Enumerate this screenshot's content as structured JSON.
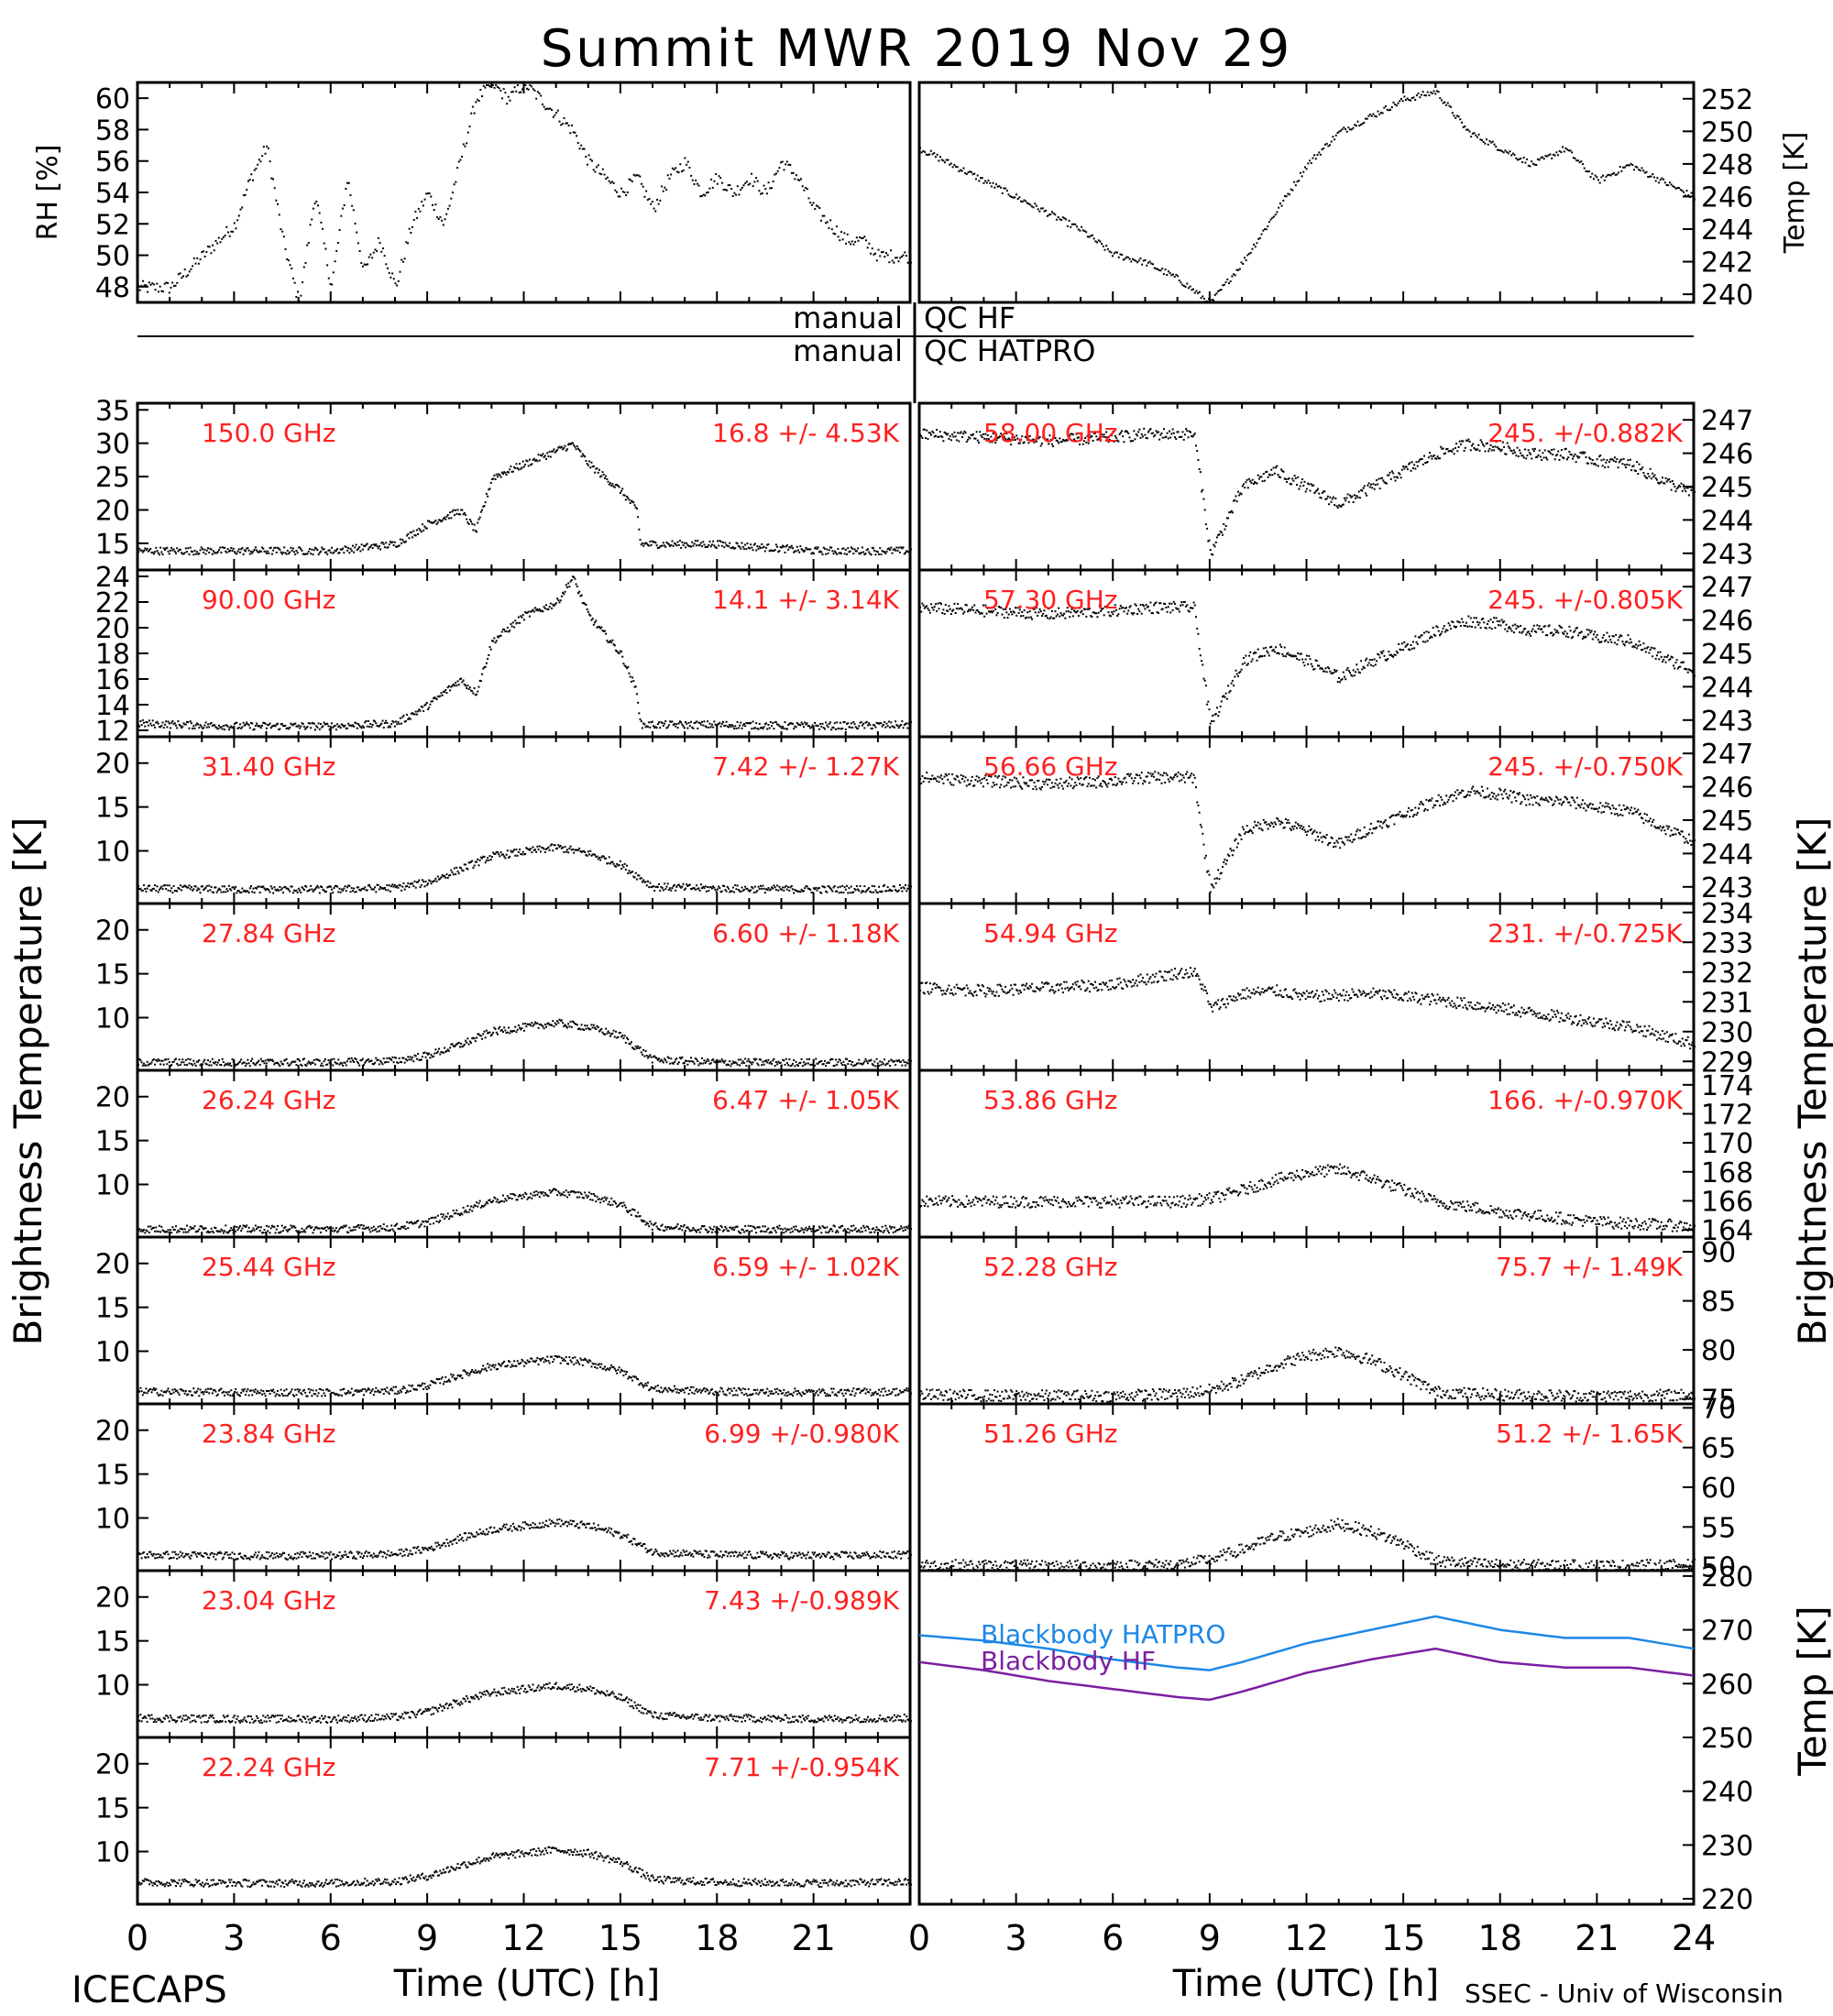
{
  "title": "Summit MWR 2019 Nov 29",
  "footer_left": "ICECAPS",
  "footer_right": "SSEC - Univ of Wisconsin",
  "xlabel": "Time (UTC) [h]",
  "left_ylabel": "Brightness Temperature [K]",
  "right_ylabel_bt": "Brightness Temperature [K]",
  "right_ylabel_temp": "Temp [K]",
  "qc_rows": [
    {
      "left": "manual",
      "right": "QC HF"
    },
    {
      "left": "manual",
      "right": "QC HATPRO"
    }
  ],
  "colors": {
    "axis": "#000000",
    "label_red": "#ff2020",
    "bb_hatpro": "#1e88e5",
    "bb_hf": "#7b1fa2"
  },
  "chart_data": [
    {
      "id": "rh",
      "type": "scatter",
      "ylabel": "RH [%]",
      "ylim": [
        47,
        61
      ],
      "yticks": [
        48,
        50,
        52,
        54,
        56,
        58,
        60
      ],
      "x": [
        0,
        1,
        2,
        3,
        3.5,
        4,
        4.5,
        5,
        5.5,
        6,
        6.5,
        7,
        7.5,
        8,
        8.5,
        9,
        9.5,
        10,
        10.5,
        11,
        11.5,
        12,
        12.5,
        13,
        13.5,
        14,
        14.5,
        15,
        15.5,
        16,
        16.5,
        17,
        17.5,
        18,
        18.5,
        19,
        19.5,
        20,
        20.5,
        21,
        21.5,
        22,
        22.5,
        23,
        24
      ],
      "y": [
        48,
        48,
        50,
        52,
        55,
        57,
        51,
        47,
        54,
        48,
        55,
        49,
        51,
        48,
        52,
        54,
        52,
        56,
        60,
        61,
        60,
        61,
        60,
        59,
        58,
        56,
        55,
        54,
        55,
        53,
        55,
        56,
        54,
        55,
        54,
        55,
        54,
        56,
        55,
        53,
        52,
        51,
        51,
        50,
        50
      ]
    },
    {
      "id": "temp",
      "type": "line",
      "ylabel": "Temp [K]",
      "ylim": [
        239.5,
        253
      ],
      "yticks": [
        240,
        242,
        244,
        246,
        248,
        250,
        252
      ],
      "x": [
        0,
        1,
        2,
        3,
        4,
        5,
        6,
        7,
        8,
        9,
        10,
        11,
        12,
        13,
        14,
        15,
        16,
        17,
        18,
        19,
        20,
        21,
        22,
        23,
        24
      ],
      "y": [
        249,
        248,
        247,
        246,
        245,
        244,
        242.5,
        242,
        241,
        239.5,
        242,
        245,
        248,
        250,
        251,
        252,
        252.5,
        250,
        249,
        248,
        249,
        247,
        248,
        247,
        246
      ]
    },
    {
      "id": "ch150",
      "type": "scatter",
      "label": "150.0 GHz",
      "stat": "16.8 +/-  4.53K",
      "ylim": [
        11,
        36
      ],
      "yticks": [
        15,
        20,
        25,
        30,
        35
      ],
      "x": [
        0,
        3,
        6,
        8,
        9,
        10,
        10.5,
        11,
        12,
        13,
        13.5,
        14,
        15,
        15.5,
        15.6,
        18,
        21,
        24
      ],
      "y": [
        14,
        14,
        14,
        15,
        18,
        20,
        17,
        25,
        27,
        29,
        30,
        27,
        23,
        20,
        15,
        15,
        14,
        14
      ]
    },
    {
      "id": "ch90",
      "type": "scatter",
      "label": "90.00 GHz",
      "stat": "14.1 +/-  3.14K",
      "ylim": [
        11.5,
        24.5
      ],
      "yticks": [
        12,
        14,
        16,
        18,
        20,
        22,
        24
      ],
      "x": [
        0,
        3,
        6,
        8,
        9,
        10,
        10.5,
        11,
        12,
        13,
        13.5,
        14,
        15,
        15.5,
        15.6,
        18,
        21,
        24
      ],
      "y": [
        12.6,
        12.4,
        12.4,
        12.6,
        14,
        16,
        15,
        19,
        21,
        22,
        24,
        21,
        18,
        15,
        12.5,
        12.5,
        12.4,
        12.5
      ]
    },
    {
      "id": "ch31",
      "type": "scatter",
      "label": "31.40 GHz",
      "stat": "7.42 +/- 1.27K",
      "ylim": [
        4,
        23
      ],
      "yticks": [
        10,
        15,
        20
      ],
      "x": [
        0,
        3,
        6,
        8,
        9,
        10,
        11,
        12,
        13,
        14,
        15,
        16,
        18,
        21,
        24
      ],
      "y": [
        5.8,
        5.7,
        5.7,
        5.9,
        6.5,
        8,
        9.5,
        10,
        10.5,
        9.8,
        8.5,
        6,
        5.8,
        5.7,
        5.8
      ]
    },
    {
      "id": "ch2784",
      "type": "scatter",
      "label": "27.84 GHz",
      "stat": "6.60 +/- 1.18K",
      "ylim": [
        4,
        23
      ],
      "yticks": [
        10,
        15,
        20
      ],
      "x": [
        0,
        3,
        6,
        8,
        9,
        10,
        11,
        12,
        13,
        14,
        15,
        16,
        18,
        21,
        24
      ],
      "y": [
        5,
        5,
        5,
        5.2,
        5.8,
        7,
        8.5,
        9,
        9.5,
        9,
        8,
        5.3,
        5,
        5,
        5
      ]
    },
    {
      "id": "ch2624",
      "type": "scatter",
      "label": "26.24 GHz",
      "stat": "6.47 +/- 1.05K",
      "ylim": [
        4,
        23
      ],
      "yticks": [
        10,
        15,
        20
      ],
      "x": [
        0,
        3,
        6,
        8,
        9,
        10,
        11,
        12,
        13,
        14,
        15,
        16,
        18,
        21,
        24
      ],
      "y": [
        5,
        5,
        5,
        5.2,
        5.8,
        7,
        8.3,
        8.8,
        9.2,
        8.8,
        7.8,
        5.3,
        5,
        5,
        5
      ]
    },
    {
      "id": "ch2544",
      "type": "scatter",
      "label": "25.44 GHz",
      "stat": "6.59 +/- 1.02K",
      "ylim": [
        4,
        23
      ],
      "yticks": [
        10,
        15,
        20
      ],
      "x": [
        0,
        3,
        6,
        8,
        9,
        10,
        11,
        12,
        13,
        14,
        15,
        16,
        18,
        21,
        24
      ],
      "y": [
        5.5,
        5.4,
        5.4,
        5.6,
        6.2,
        7.4,
        8.4,
        8.8,
        9.2,
        8.8,
        7.8,
        5.8,
        5.5,
        5.4,
        5.5
      ]
    },
    {
      "id": "ch2384",
      "type": "scatter",
      "label": "23.84 GHz",
      "stat": "6.99 +/-0.980K",
      "ylim": [
        4,
        23
      ],
      "yticks": [
        10,
        15,
        20
      ],
      "x": [
        0,
        3,
        6,
        8,
        9,
        10,
        11,
        12,
        13,
        14,
        15,
        16,
        18,
        21,
        24
      ],
      "y": [
        5.9,
        5.8,
        5.8,
        6,
        6.6,
        7.8,
        8.8,
        9.2,
        9.6,
        9.2,
        8.2,
        6.2,
        5.9,
        5.8,
        5.9
      ]
    },
    {
      "id": "ch2304",
      "type": "scatter",
      "label": "23.04 GHz",
      "stat": "7.43 +/-0.989K",
      "ylim": [
        4,
        23
      ],
      "yticks": [
        10,
        15,
        20
      ],
      "x": [
        0,
        3,
        6,
        8,
        9,
        10,
        11,
        12,
        13,
        14,
        15,
        16,
        18,
        21,
        24
      ],
      "y": [
        6.3,
        6.2,
        6.2,
        6.4,
        7,
        8.2,
        9.2,
        9.6,
        10,
        9.6,
        8.6,
        6.6,
        6.3,
        6.2,
        6.3
      ]
    },
    {
      "id": "ch2224",
      "type": "scatter",
      "label": "22.24 GHz",
      "stat": "7.71 +/-0.954K",
      "ylim": [
        4,
        23
      ],
      "yticks": [
        10,
        15,
        20
      ],
      "x": [
        0,
        3,
        6,
        8,
        9,
        10,
        11,
        12,
        13,
        14,
        15,
        16,
        18,
        21,
        24
      ],
      "y": [
        6.6,
        6.5,
        6.5,
        6.7,
        7.3,
        8.5,
        9.5,
        9.9,
        10.3,
        9.9,
        8.9,
        6.9,
        6.6,
        6.5,
        6.6
      ]
    },
    {
      "id": "ch5800",
      "type": "scatter",
      "label": "58.00 GHz",
      "stat": "245. +/-0.882K",
      "ylim": [
        242.5,
        247.5
      ],
      "yticks": [
        243,
        244,
        245,
        246,
        247
      ],
      "x": [
        0,
        2,
        4,
        6,
        7,
        8,
        8.5,
        8.8,
        9,
        9.5,
        10,
        11,
        12,
        13,
        14,
        15,
        16,
        17,
        18,
        19,
        20,
        21,
        22,
        23,
        24
      ],
      "y": [
        246.6,
        246.5,
        246.4,
        246.5,
        246.6,
        246.6,
        246.6,
        244.5,
        243,
        244,
        245,
        245.5,
        245,
        244.5,
        245,
        245.5,
        246,
        246.3,
        246.2,
        246,
        246,
        245.8,
        245.7,
        245.2,
        244.8
      ]
    },
    {
      "id": "ch5730",
      "type": "scatter",
      "label": "57.30 GHz",
      "stat": "245. +/-0.805K",
      "ylim": [
        242.5,
        247.5
      ],
      "yticks": [
        243,
        244,
        245,
        246,
        247
      ],
      "x": [
        0,
        2,
        4,
        6,
        7,
        8,
        8.5,
        8.8,
        9,
        9.5,
        10,
        11,
        12,
        13,
        14,
        15,
        16,
        17,
        18,
        19,
        20,
        21,
        22,
        23,
        24
      ],
      "y": [
        246.4,
        246.3,
        246.2,
        246.3,
        246.4,
        246.4,
        246.4,
        244.3,
        242.9,
        243.8,
        244.8,
        245.2,
        244.8,
        244.3,
        244.8,
        245.2,
        245.7,
        246,
        245.9,
        245.7,
        245.7,
        245.5,
        245.4,
        244.9,
        244.5
      ]
    },
    {
      "id": "ch5666",
      "type": "scatter",
      "label": "56.66 GHz",
      "stat": "245. +/-0.750K",
      "ylim": [
        242.5,
        247.5
      ],
      "yticks": [
        243,
        244,
        245,
        246,
        247
      ],
      "x": [
        0,
        2,
        4,
        6,
        7,
        8,
        8.5,
        8.8,
        9,
        9.5,
        10,
        11,
        12,
        13,
        14,
        15,
        16,
        17,
        18,
        19,
        20,
        21,
        22,
        23,
        24
      ],
      "y": [
        246.3,
        246.2,
        246.1,
        246.2,
        246.3,
        246.3,
        246.3,
        244.2,
        243,
        243.8,
        244.7,
        245,
        244.7,
        244.3,
        244.8,
        245.2,
        245.6,
        245.9,
        245.8,
        245.6,
        245.6,
        245.4,
        245.3,
        244.8,
        244.4
      ]
    },
    {
      "id": "ch5494",
      "type": "scatter",
      "label": "54.94 GHz",
      "stat": "231. +/-0.725K",
      "ylim": [
        228.7,
        234.3
      ],
      "yticks": [
        229,
        230,
        231,
        232,
        233,
        234
      ],
      "x": [
        0,
        2,
        4,
        6,
        7,
        8,
        8.5,
        8.8,
        9,
        10,
        11,
        12,
        14,
        16,
        18,
        20,
        22,
        24
      ],
      "y": [
        231.5,
        231.4,
        231.5,
        231.6,
        231.8,
        232,
        232,
        231.5,
        230.8,
        231.3,
        231.4,
        231.2,
        231.3,
        231.1,
        230.8,
        230.5,
        230.2,
        229.6
      ]
    },
    {
      "id": "ch5386",
      "type": "scatter",
      "label": "53.86 GHz",
      "stat": "166. +/-0.970K",
      "ylim": [
        163.5,
        175
      ],
      "yticks": [
        164,
        166,
        168,
        170,
        172,
        174
      ],
      "x": [
        0,
        3,
        6,
        8,
        9,
        10,
        11,
        12,
        13,
        14,
        15,
        16,
        18,
        21,
        24
      ],
      "y": [
        166,
        166,
        166,
        166,
        166.2,
        166.8,
        167.5,
        168,
        168.2,
        167.6,
        166.8,
        166,
        165.3,
        164.6,
        164.3
      ]
    },
    {
      "id": "ch5228",
      "type": "scatter",
      "label": "52.28 GHz",
      "stat": "75.7 +/-  1.49K",
      "ylim": [
        74.5,
        91.5
      ],
      "yticks": [
        75,
        80,
        85,
        90
      ],
      "x": [
        0,
        3,
        6,
        8,
        9,
        10,
        11,
        12,
        13,
        14,
        15,
        16,
        18,
        21,
        24
      ],
      "y": [
        75.5,
        75.4,
        75.4,
        75.6,
        76,
        77,
        78.5,
        79.5,
        80,
        79,
        77.5,
        75.8,
        75.5,
        75.4,
        75.5
      ]
    },
    {
      "id": "ch5126",
      "type": "scatter",
      "label": "51.26 GHz",
      "stat": "51.2 +/-  1.65K",
      "ylim": [
        49.5,
        70.5
      ],
      "yticks": [
        50,
        55,
        60,
        65,
        70
      ],
      "x": [
        0,
        3,
        6,
        8,
        9,
        10,
        11,
        12,
        13,
        14,
        15,
        16,
        18,
        21,
        24
      ],
      "y": [
        50.3,
        50.2,
        50.2,
        50.4,
        51,
        52.3,
        53.8,
        54.5,
        55.5,
        54.5,
        53,
        50.8,
        50.3,
        50.2,
        50.3
      ]
    },
    {
      "id": "blackbody",
      "type": "line",
      "ylim": [
        219,
        281
      ],
      "yticks": [
        220,
        230,
        240,
        250,
        260,
        270,
        280
      ],
      "series": [
        {
          "name": "Blackbody HATPRO",
          "x": [
            0,
            2,
            4,
            6,
            8,
            9,
            10,
            12,
            14,
            16,
            18,
            20,
            22,
            24
          ],
          "y": [
            269,
            268,
            266.5,
            264.5,
            263,
            262.5,
            264,
            267.5,
            270,
            272.5,
            270,
            268.5,
            268.5,
            266.5
          ]
        },
        {
          "name": "Blackbody HF",
          "x": [
            0,
            2,
            4,
            6,
            8,
            9,
            10,
            12,
            14,
            16,
            18,
            20,
            22,
            24
          ],
          "y": [
            264,
            262.5,
            260.5,
            259,
            257.5,
            257,
            258.5,
            262,
            264.5,
            266.5,
            264,
            263,
            263,
            261.5
          ]
        }
      ]
    },
    {
      "id": "x_axis",
      "type": "axis",
      "xlim": [
        0,
        24
      ],
      "left_ticks": [
        "0",
        "3",
        "6",
        "9",
        "12",
        "15",
        "18",
        "21"
      ],
      "right_ticks": [
        "0",
        "3",
        "6",
        "9",
        "12",
        "15",
        "18",
        "21",
        "24"
      ]
    }
  ]
}
